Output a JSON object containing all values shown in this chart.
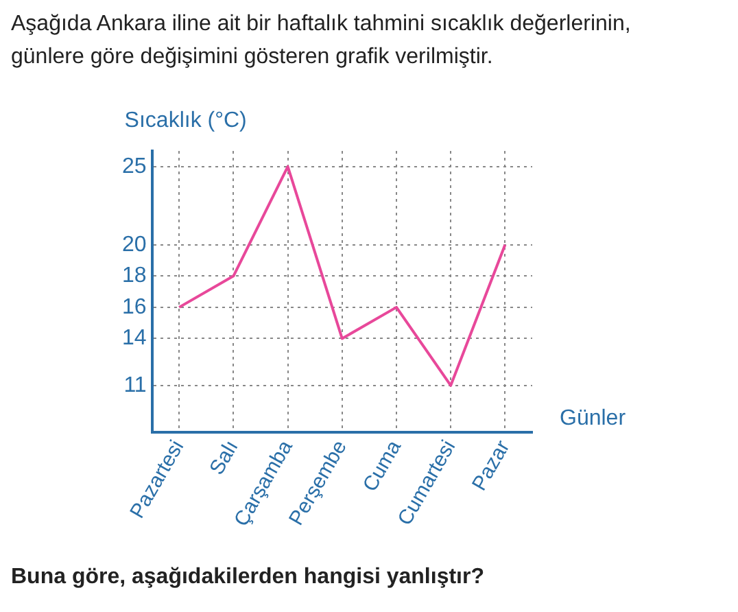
{
  "chart_data": {
    "type": "line",
    "title": "Aşağıda Ankara iline ait bir haftalık tahmini sıcaklık değerlerinin, günlere göre değişimini gösteren grafik verilmiştir.",
    "ylabel": "Sıcaklık (°C)",
    "xlabel": "Günler",
    "categories": [
      "Pazartesi",
      "Salı",
      "Çarşamba",
      "Perşembe",
      "Cuma",
      "Cumartesi",
      "Pazar"
    ],
    "series": [
      {
        "color": "#e8489a",
        "values": [
          16,
          18,
          25,
          14,
          16,
          11,
          20
        ]
      }
    ],
    "ylim": [
      8,
      26
    ],
    "yticks": [
      11,
      14,
      16,
      18,
      20,
      25
    ],
    "grid": true,
    "legend": false,
    "marker": "none",
    "line_style": "solid",
    "annotations": [
      "Buna göre, aşağıdakilerden hangisi yanlıştır?"
    ]
  }
}
